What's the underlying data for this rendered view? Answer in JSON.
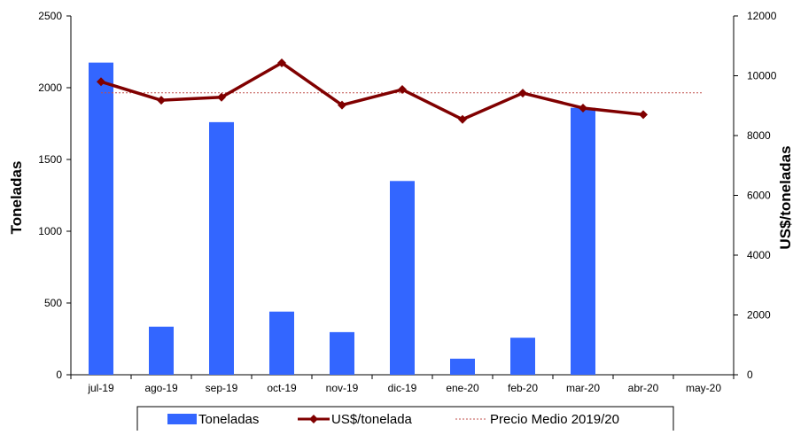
{
  "chart_data": {
    "type": "bar",
    "categories": [
      "jul-19",
      "ago-19",
      "sep-19",
      "oct-19",
      "nov-19",
      "dic-19",
      "ene-20",
      "feb-20",
      "mar-20",
      "abr-20",
      "may-20"
    ],
    "series": [
      {
        "name": "Toneladas",
        "type": "bar",
        "axis": "left",
        "color": "#3366ff",
        "values": [
          2175,
          335,
          1760,
          440,
          297,
          1350,
          112,
          258,
          1860,
          0,
          0
        ]
      },
      {
        "name": "US$/tonelada",
        "type": "line",
        "axis": "right",
        "color": "#800000",
        "marker": "diamond",
        "values": [
          9800,
          9180,
          9280,
          10430,
          9020,
          9540,
          8540,
          9420,
          8920,
          8700,
          null
        ]
      },
      {
        "name": "Precio Medio 2019/20",
        "type": "line",
        "axis": "right",
        "color": "#c0504d",
        "style": "dotted",
        "values": [
          9430,
          9430,
          9430,
          9430,
          9430,
          9430,
          9430,
          9430,
          9430,
          9430,
          9430
        ]
      }
    ],
    "ylabel": "Toneladas",
    "y2label": "US$/toneladas",
    "ylim": [
      0,
      2500
    ],
    "y2lim": [
      0,
      12000
    ],
    "yticks": [
      0,
      500,
      1000,
      1500,
      2000,
      2500
    ],
    "y2ticks": [
      0,
      2000,
      4000,
      6000,
      8000,
      10000,
      12000
    ],
    "grid": false,
    "legend_position": "bottom"
  }
}
